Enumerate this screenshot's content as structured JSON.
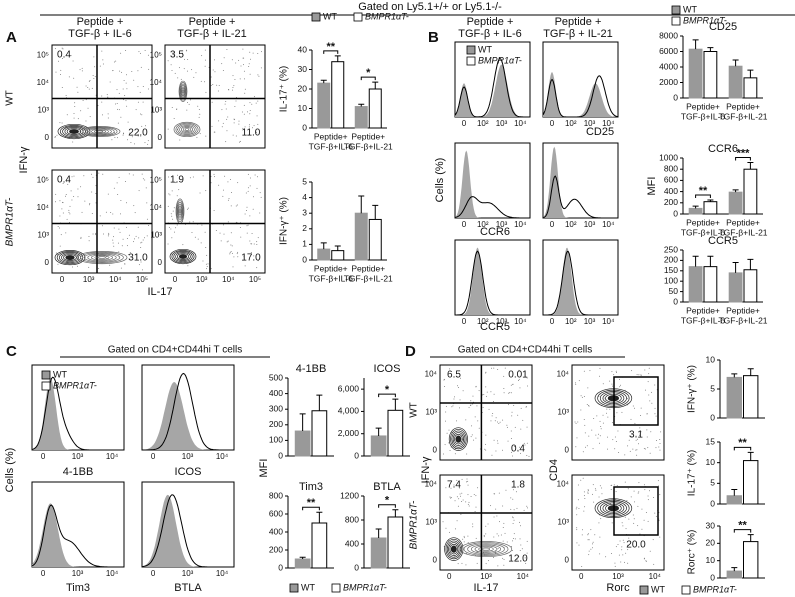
{
  "header": {
    "gate": "Gated on Ly5.1+/+ or Ly5.1-/-"
  },
  "panels": {
    "A": {
      "label": "A",
      "col_titles": [
        [
          "Peptide +",
          "TGF-β + IL-6"
        ],
        [
          "Peptide +",
          "TGF-β + IL-21"
        ]
      ],
      "row_labels": [
        "WT",
        "BMPR1αT-"
      ],
      "ylabel": "IFN-γ",
      "xlabel": "IL-17",
      "quadrants": [
        [
          "0.4",
          "22.0"
        ],
        [
          "3.5",
          "11.0"
        ],
        [
          "0.4",
          "31.0"
        ],
        [
          "1.9",
          "17.0"
        ]
      ],
      "ticks": [
        "0",
        "10³",
        "10⁴",
        "10⁵"
      ]
    },
    "B": {
      "label": "B",
      "col_titles": [
        [
          "Peptide +",
          "TGF-β + IL-6"
        ],
        [
          "Peptide +",
          "TGF-β + IL-21"
        ]
      ],
      "legend": [
        "WT",
        "BMPR1αT-"
      ],
      "ylabel": "Cells (%)",
      "markers": [
        "CD25",
        "CCR6",
        "CCR5"
      ],
      "ticks": [
        "0",
        "10²",
        "10³",
        "10⁴"
      ],
      "mfi": "MFI"
    },
    "C": {
      "label": "C",
      "gate": "Gated on CD4+CD44hi T cells",
      "legend": [
        "WT",
        "BMPR1αT-"
      ],
      "ylabel": "Cells (%)",
      "markers": [
        "4-1BB",
        "ICOS",
        "Tim3",
        "BTLA"
      ],
      "ticks": [
        "0",
        "10³",
        "10⁴"
      ],
      "mfi": "MFI"
    },
    "D": {
      "label": "D",
      "gate": "Gated on CD4+CD44hi T cells",
      "row_labels": [
        "WT",
        "BMPR1αT-"
      ],
      "ylabel": "IFN-γ",
      "xlabel": "IL-17",
      "quadrants": [
        [
          "6.5",
          "0.01",
          "0.4"
        ],
        [
          "7.4",
          "1.8",
          "12.0"
        ]
      ],
      "gate_values": [
        "3.1",
        "20.0"
      ],
      "ylabel2": "CD4",
      "xlabel2": "Rorc",
      "ticks": [
        "0",
        "10³",
        "10⁴"
      ]
    }
  },
  "chart_data": [
    {
      "type": "bar",
      "ylabel": "IL-17⁺ (%)",
      "categories": [
        [
          "Peptide+",
          "TGF-β+IL-6"
        ],
        [
          "Peptide+",
          "TGF-β+IL-21"
        ]
      ],
      "series": [
        {
          "name": "WT",
          "color": "#999999",
          "values": [
            23,
            11
          ],
          "errors": [
            1.5,
            1.2
          ]
        },
        {
          "name": "BMPR1αT-",
          "color": "#ffffff",
          "values": [
            34,
            20
          ],
          "errors": [
            3,
            3.5
          ]
        }
      ],
      "ylim": [
        0,
        40
      ],
      "yticks": [
        0,
        10,
        20,
        30,
        40
      ],
      "legend": "top",
      "significance": [
        {
          "category": 0,
          "label": "**"
        },
        {
          "category": 1,
          "label": "*"
        }
      ]
    },
    {
      "type": "bar",
      "ylabel": "IFN-γ⁺ (%)",
      "categories": [
        [
          "Peptide+",
          "TGF-β+IL-6"
        ],
        [
          "Peptide+",
          "TGF-β+IL-21"
        ]
      ],
      "series": [
        {
          "name": "WT",
          "color": "#999999",
          "values": [
            0.7,
            3.0
          ],
          "errors": [
            0.4,
            1.1
          ]
        },
        {
          "name": "BMPR1αT-",
          "color": "#ffffff",
          "values": [
            0.6,
            2.6
          ],
          "errors": [
            0.3,
            0.9
          ]
        }
      ],
      "ylim": [
        0,
        5
      ],
      "yticks": [
        0,
        1,
        2,
        3,
        4,
        5
      ]
    },
    {
      "type": "bar",
      "title": "CD25",
      "categories": [
        [
          "Peptide+",
          "TGF-β+IL-6"
        ],
        [
          "Peptide+",
          "TGF-β+IL-21"
        ]
      ],
      "series": [
        {
          "name": "WT",
          "color": "#999999",
          "values": [
            6300,
            4100
          ],
          "errors": [
            1200,
            800
          ]
        },
        {
          "name": "BMPR1αT-",
          "color": "#ffffff",
          "values": [
            6000,
            2600
          ],
          "errors": [
            500,
            1000
          ]
        }
      ],
      "ylim": [
        0,
        8000
      ],
      "yticks": [
        0,
        2000,
        4000,
        6000,
        8000
      ],
      "legend": "top"
    },
    {
      "type": "bar",
      "title": "CCR6",
      "categories": [
        [
          "Peptide+",
          "TGF-β+IL-6"
        ],
        [
          "Peptide+",
          "TGF-β+IL-21"
        ]
      ],
      "series": [
        {
          "name": "WT",
          "color": "#999999",
          "values": [
            100,
            390
          ],
          "errors": [
            40,
            40
          ]
        },
        {
          "name": "BMPR1αT-",
          "color": "#ffffff",
          "values": [
            220,
            800
          ],
          "errors": [
            30,
            120
          ]
        }
      ],
      "ylim": [
        0,
        1000
      ],
      "yticks": [
        0,
        200,
        400,
        600,
        800,
        1000
      ],
      "significance": [
        {
          "category": 0,
          "label": "**"
        },
        {
          "category": 1,
          "label": "***"
        }
      ]
    },
    {
      "type": "bar",
      "title": "CCR5",
      "categories": [
        [
          "Peptide+",
          "TGF-β+IL-6"
        ],
        [
          "Peptide+",
          "TGF-β+IL-21"
        ]
      ],
      "series": [
        {
          "name": "WT",
          "color": "#999999",
          "values": [
            170,
            140
          ],
          "errors": [
            50,
            50
          ]
        },
        {
          "name": "BMPR1αT-",
          "color": "#ffffff",
          "values": [
            170,
            155
          ],
          "errors": [
            50,
            50
          ]
        }
      ],
      "ylim": [
        0,
        250
      ],
      "yticks": [
        0,
        50,
        100,
        150,
        200,
        250
      ]
    },
    {
      "type": "bar",
      "title": "4-1BB",
      "categories": [
        null
      ],
      "series": [
        {
          "name": "WT",
          "color": "#999999",
          "values": [
            160
          ],
          "errors": [
            110
          ]
        },
        {
          "name": "BMPR1αT-",
          "color": "#ffffff",
          "values": [
            290
          ],
          "errors": [
            100
          ]
        }
      ],
      "ylim": [
        0,
        500
      ],
      "yticks": [
        0,
        100,
        200,
        300,
        400,
        500
      ]
    },
    {
      "type": "bar",
      "title": "ICOS",
      "categories": [
        null
      ],
      "series": [
        {
          "name": "WT",
          "color": "#999999",
          "values": [
            1800
          ],
          "errors": [
            700
          ]
        },
        {
          "name": "BMPR1αT-",
          "color": "#ffffff",
          "values": [
            4100
          ],
          "errors": [
            1000
          ]
        }
      ],
      "ylim": [
        0,
        7000
      ],
      "yticks": [
        0,
        {
          "value": 2000,
          "label": "2,000"
        },
        {
          "value": 4000,
          "label": "4,000"
        },
        {
          "value": 6000,
          "label": "6,000"
        }
      ],
      "significance": [
        {
          "category": 0,
          "label": "*"
        }
      ]
    },
    {
      "type": "bar",
      "title": "Tim3",
      "categories": [
        null
      ],
      "series": [
        {
          "name": "WT",
          "color": "#999999",
          "values": [
            100
          ],
          "errors": [
            20
          ]
        },
        {
          "name": "BMPR1αT-",
          "color": "#ffffff",
          "values": [
            500
          ],
          "errors": [
            120
          ]
        }
      ],
      "ylim": [
        0,
        800
      ],
      "yticks": [
        0,
        200,
        400,
        600,
        800
      ],
      "legend": "bottom",
      "significance": [
        {
          "category": 0,
          "label": "**"
        }
      ]
    },
    {
      "type": "bar",
      "title": "BTLA",
      "categories": [
        null
      ],
      "series": [
        {
          "name": "WT",
          "color": "#999999",
          "values": [
            500
          ],
          "errors": [
            150
          ]
        },
        {
          "name": "BMPR1αT-",
          "color": "#ffffff",
          "values": [
            850
          ],
          "errors": [
            120
          ]
        }
      ],
      "ylim": [
        0,
        1200
      ],
      "yticks": [
        0,
        400,
        800,
        1200
      ],
      "significance": [
        {
          "category": 0,
          "label": "*"
        }
      ]
    },
    {
      "type": "bar",
      "ylabel": "IFN-γ⁺ (%)",
      "categories": [
        null
      ],
      "series": [
        {
          "name": "WT",
          "color": "#999999",
          "values": [
            7
          ],
          "errors": [
            0.6
          ]
        },
        {
          "name": "BMPR1αT-",
          "color": "#ffffff",
          "values": [
            7.3
          ],
          "errors": [
            1.2
          ]
        }
      ],
      "ylim": [
        0,
        10
      ],
      "yticks": [
        0,
        5,
        10
      ]
    },
    {
      "type": "bar",
      "ylabel": "IL-17⁺ (%)",
      "categories": [
        null
      ],
      "series": [
        {
          "name": "WT",
          "color": "#999999",
          "values": [
            2
          ],
          "errors": [
            1.5
          ]
        },
        {
          "name": "BMPR1αT-",
          "color": "#ffffff",
          "values": [
            10.5
          ],
          "errors": [
            2
          ]
        }
      ],
      "ylim": [
        0,
        15
      ],
      "yticks": [
        0,
        5,
        10,
        15
      ],
      "significance": [
        {
          "category": 0,
          "label": "**"
        }
      ]
    },
    {
      "type": "bar",
      "ylabel": "Rorc⁺ (%)",
      "categories": [
        null
      ],
      "series": [
        {
          "name": "WT",
          "color": "#999999",
          "values": [
            4
          ],
          "errors": [
            2
          ]
        },
        {
          "name": "BMPR1αT-",
          "color": "#ffffff",
          "values": [
            21
          ],
          "errors": [
            4
          ]
        }
      ],
      "ylim": [
        0,
        30
      ],
      "yticks": [
        0,
        10,
        20,
        30
      ],
      "legend": "bottom",
      "significance": [
        {
          "category": 0,
          "label": "**"
        }
      ]
    }
  ]
}
